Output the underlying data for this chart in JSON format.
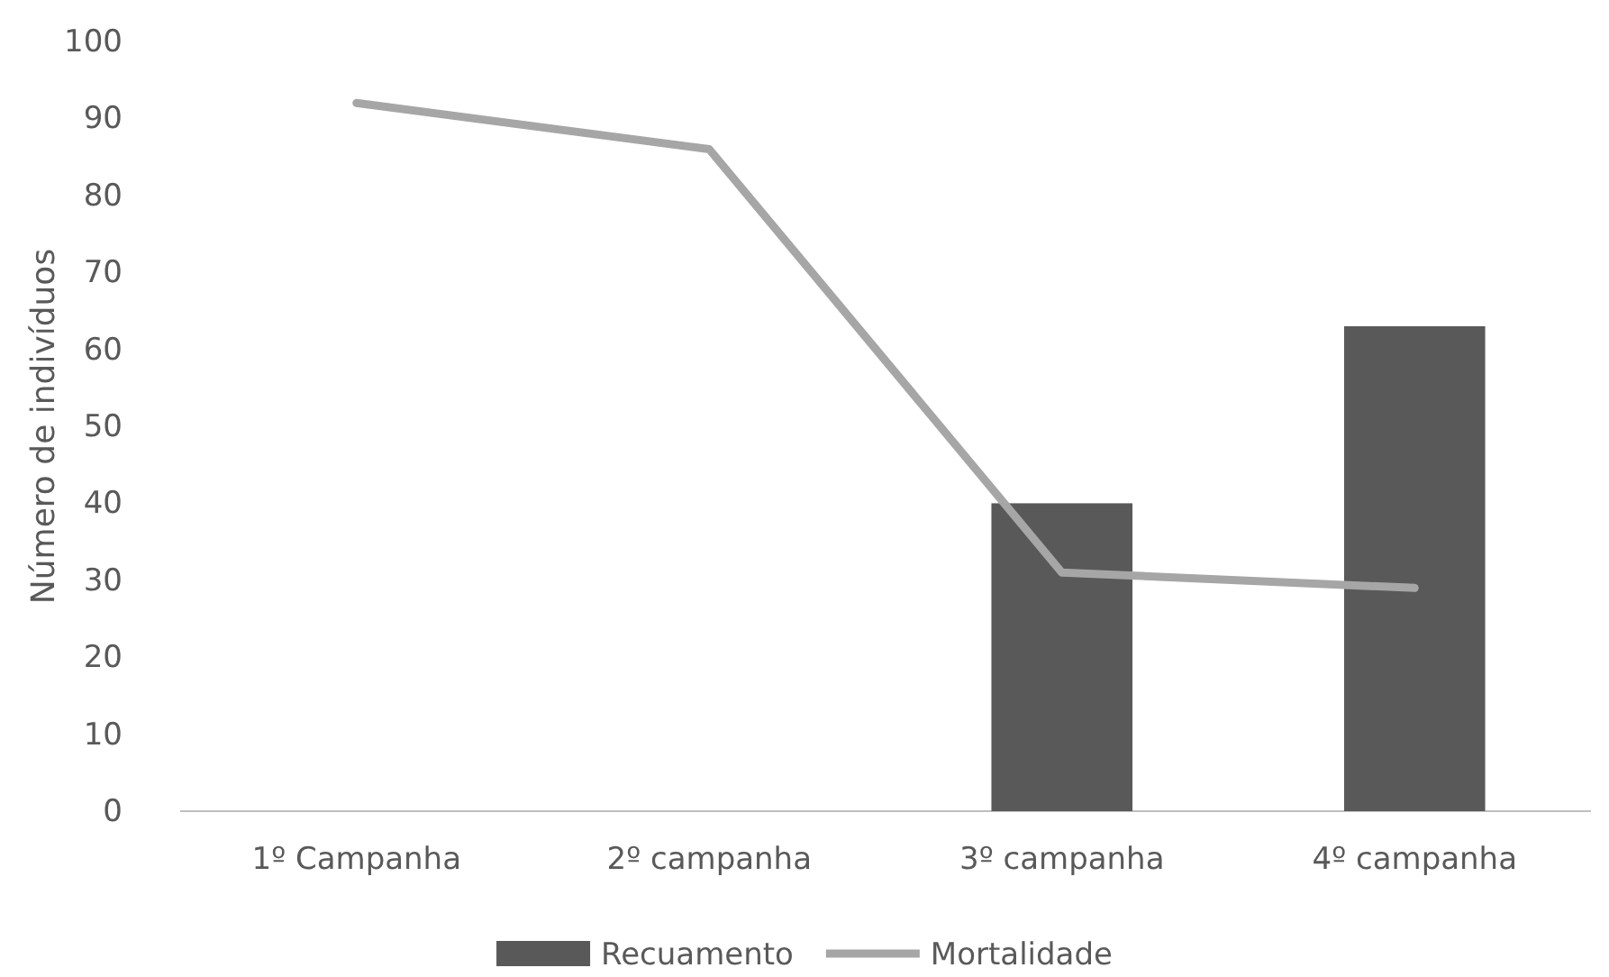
{
  "chart_data": {
    "type": "bar",
    "ylabel": "Número de indivíduos",
    "categories": [
      "1º Campanha",
      "2º campanha",
      "3º campanha",
      "4º campanha"
    ],
    "series": [
      {
        "name": "Recuamento",
        "color": "#595959",
        "values": [
          null,
          null,
          40,
          63
        ]
      },
      {
        "name": "Mortalidade",
        "type": "line",
        "color": "#a6a6a6",
        "values": [
          92,
          86,
          31,
          29
        ]
      }
    ],
    "ylim": [
      0,
      100
    ],
    "yticks": [
      0,
      10,
      20,
      30,
      40,
      50,
      60,
      70,
      80,
      90,
      100
    ],
    "grid": false,
    "legend": "bottom",
    "marker": "none",
    "line_style": "solid"
  }
}
